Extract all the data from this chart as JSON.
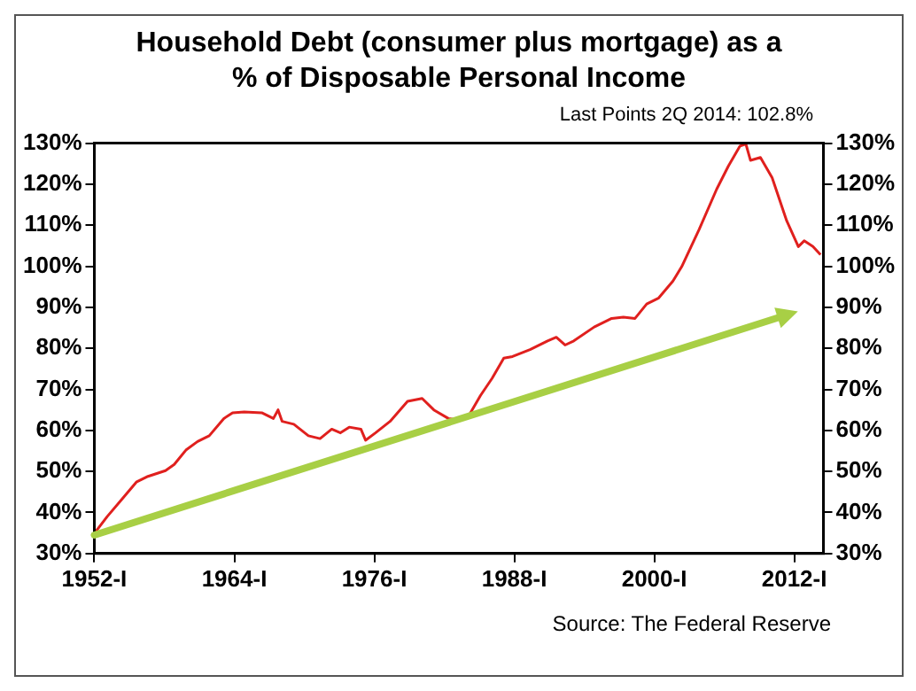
{
  "chart_data": {
    "type": "line",
    "title": "Household Debt (consumer plus mortgage) as a % of Disposable Personal Income",
    "annotations": [
      "Last Points 2Q 2014: 102.8%",
      "Source: The Federal Reserve"
    ],
    "series": [
      {
        "color": "#e0201e",
        "x": [
          1952,
          1953.1,
          1954.35,
          1955.6,
          1956.6,
          1958.1,
          1958.85,
          1959.85,
          1960.85,
          1961.85,
          1963.1,
          1963.85,
          1964.85,
          1966.35,
          1967.35,
          1967.75,
          1968.1,
          1969.1,
          1970.35,
          1971.35,
          1972.35,
          1973.1,
          1973.85,
          1974.85,
          1975.25,
          1976.1,
          1977.35,
          1978.85,
          1980.1,
          1981.1,
          1982.35,
          1983.1,
          1984.1,
          1985.1,
          1986.1,
          1987.1,
          1987.85,
          1989.35,
          1990.85,
          1991.6,
          1992.35,
          1993.1,
          1994.85,
          1996.35,
          1997.35,
          1998.35,
          1999.35,
          2000.35,
          2001.6,
          2002.35,
          2003.85,
          2005.35,
          2006.35,
          2007.35,
          2007.85,
          2008.25,
          2009.1,
          2010.1,
          2011.35,
          2012.35,
          2012.85,
          2013.6,
          2014.25
        ],
        "values": [
          34.9,
          39,
          43.2,
          47.4,
          48.8,
          50.2,
          51.7,
          55.2,
          57.3,
          58.7,
          62.9,
          64.3,
          64.5,
          64.3,
          62.9,
          65,
          62.2,
          61.5,
          58.7,
          58,
          60.3,
          59.4,
          60.8,
          60.3,
          57.6,
          59.4,
          62.2,
          67.1,
          67.8,
          65,
          62.9,
          62.6,
          63.6,
          68.5,
          72.7,
          77.6,
          78,
          79.7,
          81.8,
          82.7,
          80.8,
          81.8,
          85.2,
          87.3,
          87.6,
          87.3,
          90.8,
          92.2,
          96.4,
          99.9,
          109,
          118.8,
          124.4,
          129.3,
          129.8,
          125.8,
          126.5,
          121.6,
          111.1,
          104.8,
          106.2,
          104.8,
          102.8
        ]
      }
    ],
    "xlim": [
      1952,
      2014.5
    ],
    "xticks": [
      {
        "value": 1952,
        "label": "1952-I"
      },
      {
        "value": 1964,
        "label": "1964-I"
      },
      {
        "value": 1976,
        "label": "1976-I"
      },
      {
        "value": 1988,
        "label": "1988-I"
      },
      {
        "value": 2000,
        "label": "2000-I"
      },
      {
        "value": 2012,
        "label": "2012-I"
      }
    ],
    "ylim": [
      30,
      130
    ],
    "yticks": [
      {
        "value": 30,
        "label": "30%"
      },
      {
        "value": 40,
        "label": "40%"
      },
      {
        "value": 50,
        "label": "50%"
      },
      {
        "value": 60,
        "label": "60%"
      },
      {
        "value": 70,
        "label": "70%"
      },
      {
        "value": 80,
        "label": "80%"
      },
      {
        "value": 90,
        "label": "90%"
      },
      {
        "value": 100,
        "label": "100%"
      },
      {
        "value": 110,
        "label": "110%"
      },
      {
        "value": 120,
        "label": "120%"
      },
      {
        "value": 130,
        "label": "130%"
      }
    ],
    "y2lim": [
      30,
      130
    ],
    "y2ticks": [
      {
        "value": 30,
        "label": "30%"
      },
      {
        "value": 40,
        "label": "40%"
      },
      {
        "value": 50,
        "label": "50%"
      },
      {
        "value": 60,
        "label": "60%"
      },
      {
        "value": 70,
        "label": "70%"
      },
      {
        "value": 80,
        "label": "80%"
      },
      {
        "value": 90,
        "label": "90%"
      },
      {
        "value": 100,
        "label": "100%"
      },
      {
        "value": 110,
        "label": "110%"
      },
      {
        "value": 120,
        "label": "120%"
      },
      {
        "value": 130,
        "label": "130%"
      }
    ],
    "grid": false,
    "legend": false,
    "marker": "none",
    "line_style": "solid"
  }
}
